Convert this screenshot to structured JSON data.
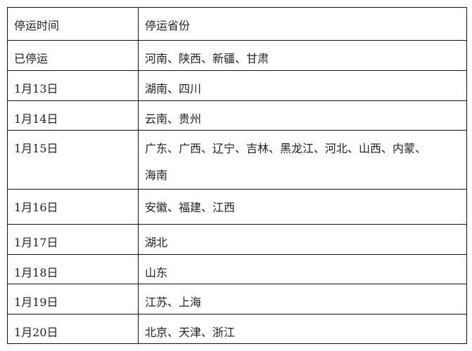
{
  "table": {
    "headers": [
      "停运时间",
      "停运省份"
    ],
    "rows": [
      {
        "time": "已停运",
        "provinces": "河南、陕西、新疆、甘肃"
      },
      {
        "time": "1月13日",
        "provinces": "湖南、四川"
      },
      {
        "time": "1月14日",
        "provinces": "云南、贵州"
      },
      {
        "time": "1月15日",
        "provinces": "广东、广西、辽宁、吉林、黑龙江、河北、山西、内蒙、",
        "provinces_cont": "海南"
      },
      {
        "time": "1月16日",
        "provinces": "安徽、福建、江西"
      },
      {
        "time": "1月17日",
        "provinces": "湖北"
      },
      {
        "time": "1月18日",
        "provinces": "山东"
      },
      {
        "time": "1月19日",
        "provinces": "江苏、上海"
      },
      {
        "time": "1月20日",
        "provinces": "北京、天津、浙江"
      }
    ]
  }
}
